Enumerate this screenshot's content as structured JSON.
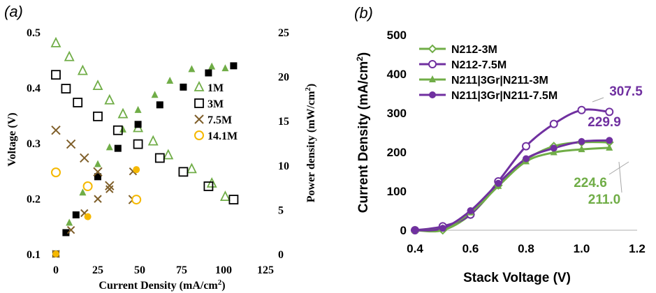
{
  "colors": {
    "green": "#70ad47",
    "purple": "#7030a0",
    "black": "#000000",
    "brown": "#7f5f2a",
    "yellow": "#f5b800",
    "gray": "#bfbfbf"
  },
  "chart_data": [
    {
      "type": "scatter",
      "panel_label": "(a)",
      "xlabel": "Current  Density (mA/cm",
      "xlabel_sup": "2",
      "xlabel_end": ")",
      "ylabel": "Voltage (V)",
      "y2label": "Power density (mW/cm",
      "y2label_sup": "2",
      "y2label_end": ")",
      "xlim": [
        0,
        125
      ],
      "ylim": [
        0.1,
        0.5
      ],
      "y2lim": [
        0,
        25
      ],
      "xticks": [
        "0",
        "25",
        "50",
        "75",
        "100",
        "125"
      ],
      "yticks": [
        "0.1",
        "0.2",
        "0.3",
        "0.4",
        "0.5"
      ],
      "y2ticks": [
        "0",
        "5",
        "10",
        "15",
        "20",
        "25"
      ],
      "legend_position": "right",
      "series": [
        {
          "name": "1M",
          "marker": "triangle",
          "color": "green",
          "voltage": [
            [
              0,
              0.48
            ],
            [
              8,
              0.455
            ],
            [
              16,
              0.43
            ],
            [
              25,
              0.403
            ],
            [
              32,
              0.377
            ],
            [
              40,
              0.352
            ],
            [
              49,
              0.327
            ],
            [
              58,
              0.303
            ],
            [
              67,
              0.278
            ],
            [
              81,
              0.253
            ],
            [
              93,
              0.227
            ],
            [
              101,
              0.203
            ]
          ],
          "power": [
            [
              0,
              0
            ],
            [
              8,
              3.5
            ],
            [
              16,
              6.9
            ],
            [
              25,
              10.1
            ],
            [
              32,
              12.0
            ],
            [
              40,
              14.0
            ],
            [
              49,
              16.2
            ],
            [
              59,
              17.9
            ],
            [
              68,
              19.5
            ],
            [
              81,
              20.8
            ],
            [
              93,
              21.1
            ],
            [
              101,
              20.9
            ]
          ]
        },
        {
          "name": "3M",
          "marker": "square",
          "color": "black",
          "voltage": [
            [
              0,
              0.423
            ],
            [
              6,
              0.398
            ],
            [
              13,
              0.373
            ],
            [
              25,
              0.348
            ],
            [
              37,
              0.323
            ],
            [
              49,
              0.298
            ],
            [
              62,
              0.273
            ],
            [
              76,
              0.248
            ],
            [
              91,
              0.222
            ],
            [
              106,
              0.198
            ]
          ],
          "power": [
            [
              0,
              0
            ],
            [
              6,
              2.4
            ],
            [
              12,
              4.4
            ],
            [
              25,
              8.7
            ],
            [
              37,
              11.9
            ],
            [
              49,
              14.6
            ],
            [
              62,
              16.8
            ],
            [
              76,
              18.8
            ],
            [
              91,
              20.4
            ],
            [
              106,
              21.2
            ]
          ]
        },
        {
          "name": "7.5M",
          "marker": "x",
          "color": "brown",
          "voltage": [
            [
              0,
              0.323
            ],
            [
              9,
              0.298
            ],
            [
              17,
              0.273
            ],
            [
              25,
              0.248
            ],
            [
              32,
              0.223
            ],
            [
              46,
              0.198
            ]
          ],
          "power": [
            [
              0,
              0
            ],
            [
              9,
              2.7
            ],
            [
              17,
              4.6
            ],
            [
              25,
              6.2
            ],
            [
              32,
              7.3
            ],
            [
              46,
              9.3
            ]
          ]
        },
        {
          "name": "14.1M",
          "marker": "circle",
          "color": "yellow",
          "voltage": [
            [
              0,
              0.247
            ],
            [
              19,
              0.222
            ],
            [
              48,
              0.198
            ]
          ],
          "power": [
            [
              0,
              0
            ],
            [
              19,
              4.2
            ],
            [
              48,
              9.5
            ]
          ]
        }
      ]
    },
    {
      "type": "line",
      "panel_label": "(b)",
      "xlabel": "Stack Voltage (V)",
      "ylabel": "Current  Density (mA/cm",
      "ylabel_sup": "2",
      "ylabel_end": ")",
      "xlim": [
        0.4,
        1.2
      ],
      "ylim": [
        0,
        500
      ],
      "xticks": [
        "0.4",
        "0.6",
        "0.8",
        "1.0",
        "1.2"
      ],
      "yticks": [
        "0",
        "100",
        "200",
        "300",
        "400",
        "500"
      ],
      "legend_position": "top-left",
      "x": [
        0.4,
        0.5,
        0.6,
        0.7,
        0.8,
        0.9,
        1.0,
        1.1
      ],
      "series": [
        {
          "name": "N212-3M",
          "marker": "diamond-open",
          "color": "green",
          "values": [
            0,
            0,
            40,
            115,
            180,
            215,
            225,
            225
          ]
        },
        {
          "name": "N212-7.5M",
          "marker": "circle-open",
          "color": "purple",
          "values": [
            0,
            10,
            40,
            125,
            215,
            272,
            307.5,
            303
          ]
        },
        {
          "name": "N211|3Gr|N211-3M",
          "marker": "triangle",
          "color": "green",
          "values": [
            0,
            5,
            45,
            113,
            176,
            199,
            207,
            211.0
          ]
        },
        {
          "name": "N211|3Gr|N211-7.5M",
          "marker": "circle",
          "color": "purple",
          "values": [
            0,
            5,
            50,
            120,
            183,
            210,
            227,
            229.9
          ]
        }
      ],
      "annotations": [
        {
          "text": "307.5",
          "color": "purple"
        },
        {
          "text": "229.9",
          "color": "purple"
        },
        {
          "text": "224.6",
          "color": "green"
        },
        {
          "text": "211.0",
          "color": "green"
        }
      ]
    }
  ]
}
